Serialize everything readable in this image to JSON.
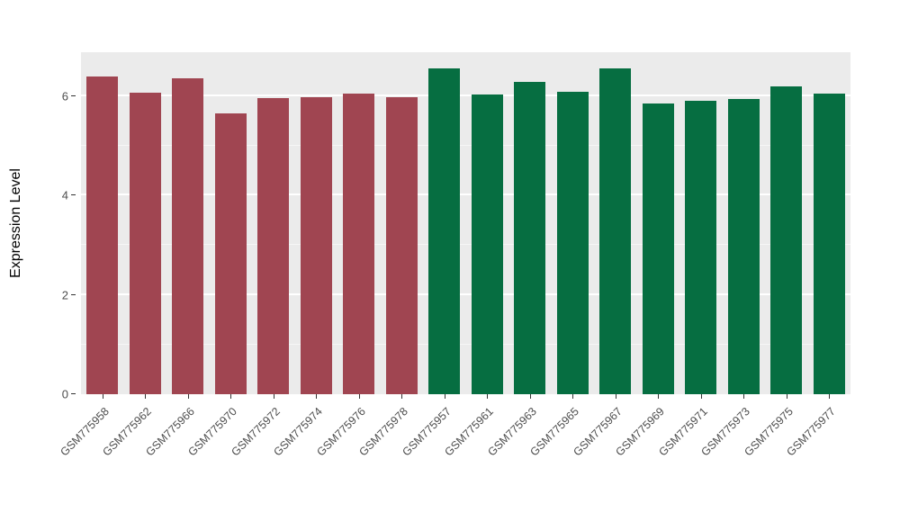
{
  "chart_data": {
    "type": "bar",
    "title": "",
    "xlabel": "",
    "ylabel": "Expression Level",
    "ylim": [
      0,
      6.88
    ],
    "yticks": [
      0,
      2,
      4,
      6
    ],
    "yticks_minor": [
      1,
      3,
      5
    ],
    "grid": true,
    "legend_position": "none",
    "panel_background": "#EBEBEB",
    "grid_color": "#FFFFFF",
    "group_colors": {
      "left_group": "#A04551",
      "right_group": "#066E41"
    },
    "categories": [
      "GSM775958",
      "GSM775962",
      "GSM775966",
      "GSM775970",
      "GSM775972",
      "GSM775974",
      "GSM775976",
      "GSM775978",
      "GSM775957",
      "GSM775961",
      "GSM775963",
      "GSM775965",
      "GSM775967",
      "GSM775969",
      "GSM775971",
      "GSM775973",
      "GSM775975",
      "GSM775977"
    ],
    "values": [
      6.4,
      6.07,
      6.35,
      5.65,
      5.95,
      5.98,
      6.05,
      5.98,
      6.55,
      6.03,
      6.28,
      6.08,
      6.55,
      5.85,
      5.9,
      5.93,
      6.2,
      6.05
    ],
    "bar_colors": [
      "#A04551",
      "#A04551",
      "#A04551",
      "#A04551",
      "#A04551",
      "#A04551",
      "#A04551",
      "#A04551",
      "#066E41",
      "#066E41",
      "#066E41",
      "#066E41",
      "#066E41",
      "#066E41",
      "#066E41",
      "#066E41",
      "#066E41",
      "#066E41"
    ]
  }
}
